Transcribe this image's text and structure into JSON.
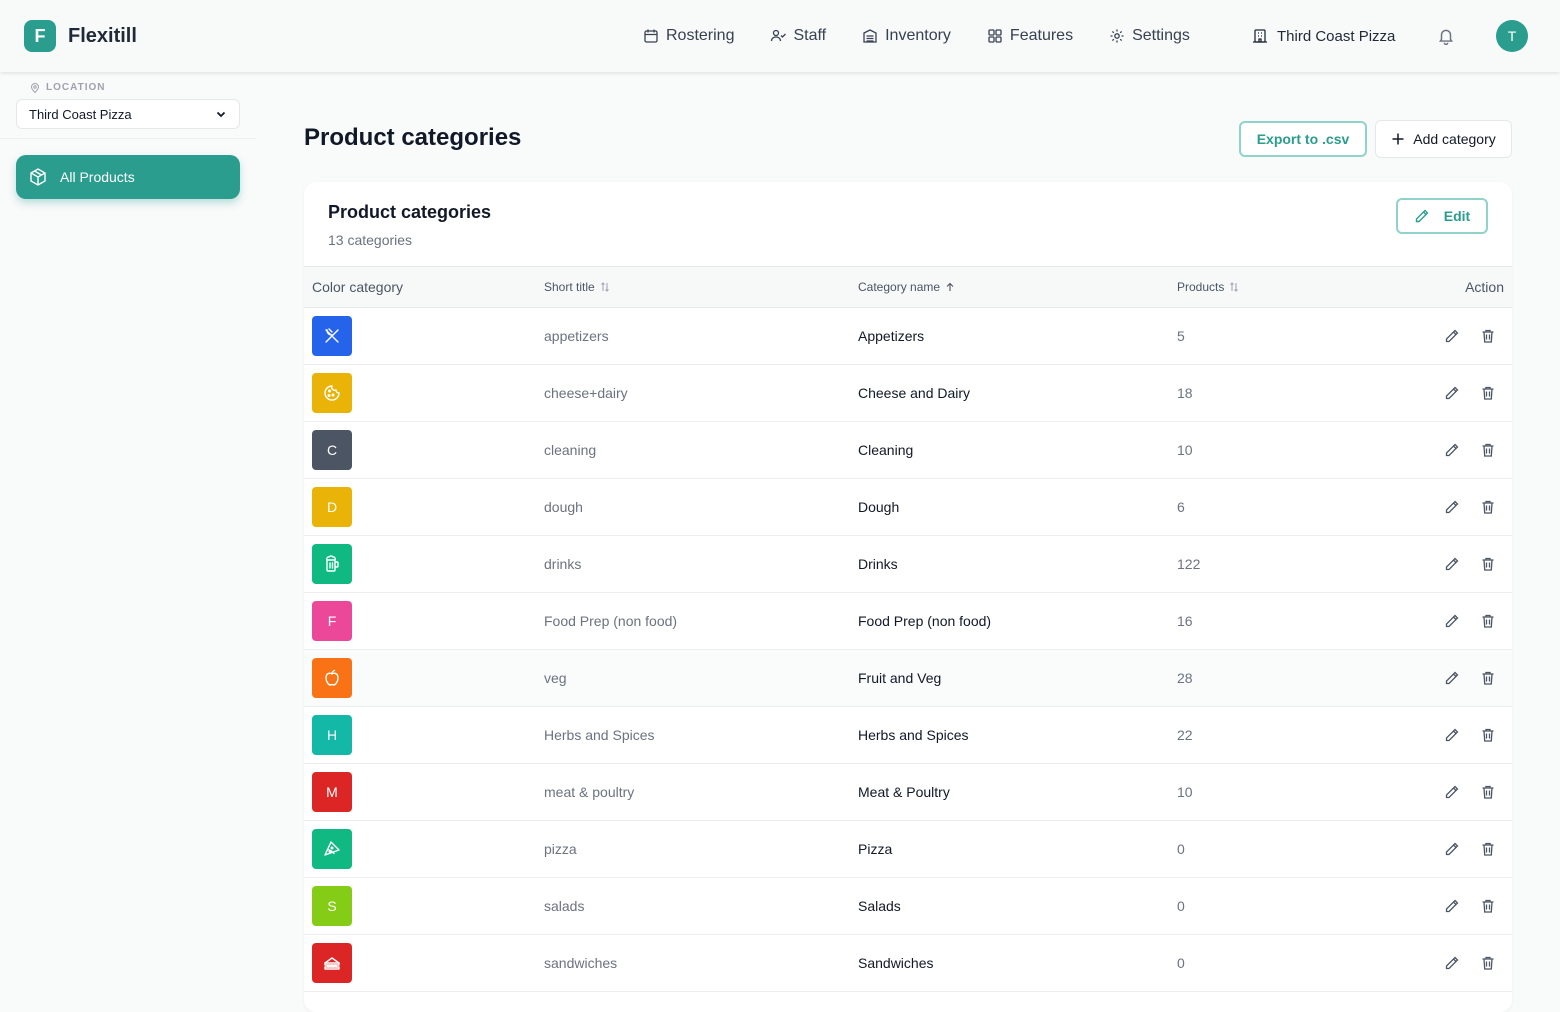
{
  "brand": {
    "logo_letter": "F",
    "name": "Flexitill",
    "color": "#2a9d8f"
  },
  "nav": [
    {
      "label": "Rostering",
      "icon": "calendar-icon"
    },
    {
      "label": "Staff",
      "icon": "users-icon"
    },
    {
      "label": "Inventory",
      "icon": "archive-icon"
    },
    {
      "label": "Features",
      "icon": "grid-icon"
    },
    {
      "label": "Settings",
      "icon": "gear-icon"
    }
  ],
  "header": {
    "location": "Third Coast Pizza",
    "avatar_letter": "T"
  },
  "sidebar": {
    "location_label": "LOCATION",
    "location_value": "Third Coast Pizza",
    "items": [
      {
        "label": "All Products",
        "icon": "box-icon",
        "active": true
      }
    ]
  },
  "page": {
    "title": "Product categories",
    "export_label": "Export to .csv",
    "add_label": "Add category"
  },
  "card": {
    "title": "Product categories",
    "subtitle": "13 categories",
    "edit_label": "Edit"
  },
  "table": {
    "columns": {
      "color": "Color category",
      "short": "Short title",
      "name": "Category name",
      "products": "Products",
      "action": "Action"
    },
    "rows": [
      {
        "swatch": "",
        "icon": "utensils-icon",
        "color": "#2563eb",
        "short": "appetizers",
        "name": "Appetizers",
        "products": "5"
      },
      {
        "swatch": "",
        "icon": "cookie-icon",
        "color": "#eab308",
        "short": "cheese+dairy",
        "name": "Cheese and Dairy",
        "products": "18"
      },
      {
        "swatch": "C",
        "icon": "",
        "color": "#4b5563",
        "short": "cleaning",
        "name": "Cleaning",
        "products": "10"
      },
      {
        "swatch": "D",
        "icon": "",
        "color": "#eab308",
        "short": "dough",
        "name": "Dough",
        "products": "6"
      },
      {
        "swatch": "",
        "icon": "beer-icon",
        "color": "#10b981",
        "short": "drinks",
        "name": "Drinks",
        "products": "122"
      },
      {
        "swatch": "F",
        "icon": "",
        "color": "#ec4899",
        "short": "Food Prep (non food)",
        "name": "Food Prep (non food)",
        "products": "16"
      },
      {
        "swatch": "",
        "icon": "apple-icon",
        "color": "#f97316",
        "short": "veg",
        "name": "Fruit and Veg",
        "products": "28"
      },
      {
        "swatch": "H",
        "icon": "",
        "color": "#14b8a6",
        "short": "Herbs and Spices",
        "name": "Herbs and Spices",
        "products": "22"
      },
      {
        "swatch": "M",
        "icon": "",
        "color": "#dc2626",
        "short": "meat & poultry",
        "name": "Meat & Poultry",
        "products": "10"
      },
      {
        "swatch": "",
        "icon": "pizza-icon",
        "color": "#10b981",
        "short": "pizza",
        "name": "Pizza",
        "products": "0"
      },
      {
        "swatch": "S",
        "icon": "",
        "color": "#84cc16",
        "short": "salads",
        "name": "Salads",
        "products": "0"
      },
      {
        "swatch": "",
        "icon": "sandwich-icon",
        "color": "#dc2626",
        "short": "sandwiches",
        "name": "Sandwiches",
        "products": "0"
      }
    ]
  }
}
